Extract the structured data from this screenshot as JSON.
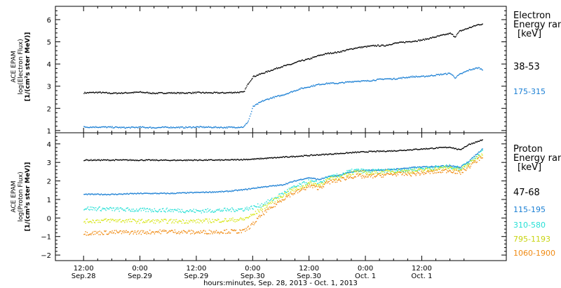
{
  "chart_data": [
    {
      "type": "scatter",
      "panel": "electron",
      "ylabel_lines": [
        "ACE EPAM",
        "log(Electron Flux)",
        "[1/(cm²s ster MeV)]"
      ],
      "legend_title": [
        "Electron",
        "Energy ran",
        "[keV]"
      ],
      "ylim": [
        0.9,
        6.6
      ],
      "yticks": [
        1,
        2,
        3,
        4,
        5,
        6
      ],
      "series": [
        {
          "name": "38-53",
          "color": "#000000",
          "points": [
            [
              0,
              2.72
            ],
            [
              3,
              2.74
            ],
            [
              6,
              2.7
            ],
            [
              9,
              2.72
            ],
            [
              12,
              2.75
            ],
            [
              15,
              2.7
            ],
            [
              18,
              2.72
            ],
            [
              21,
              2.71
            ],
            [
              24,
              2.73
            ],
            [
              27,
              2.72
            ],
            [
              30,
              2.72
            ],
            [
              32,
              2.74
            ],
            [
              34,
              2.75
            ],
            [
              35,
              3.15
            ],
            [
              36,
              3.45
            ],
            [
              38,
              3.6
            ],
            [
              40,
              3.75
            ],
            [
              42,
              3.9
            ],
            [
              44,
              4.0
            ],
            [
              46,
              4.15
            ],
            [
              48,
              4.25
            ],
            [
              50,
              4.4
            ],
            [
              52,
              4.5
            ],
            [
              54,
              4.55
            ],
            [
              56,
              4.65
            ],
            [
              58,
              4.75
            ],
            [
              60,
              4.8
            ],
            [
              62,
              4.85
            ],
            [
              64,
              4.85
            ],
            [
              66,
              4.95
            ],
            [
              68,
              5.0
            ],
            [
              70,
              5.05
            ],
            [
              72,
              5.1
            ],
            [
              74,
              5.2
            ],
            [
              76,
              5.3
            ],
            [
              78,
              5.4
            ],
            [
              79,
              5.25
            ],
            [
              80,
              5.5
            ],
            [
              82,
              5.65
            ],
            [
              84,
              5.8
            ],
            [
              85,
              5.82
            ]
          ]
        },
        {
          "name": "175-315",
          "color": "#1a7fd4",
          "points": [
            [
              0,
              1.18
            ],
            [
              3,
              1.18
            ],
            [
              6,
              1.17
            ],
            [
              9,
              1.15
            ],
            [
              12,
              1.17
            ],
            [
              15,
              1.15
            ],
            [
              18,
              1.17
            ],
            [
              21,
              1.16
            ],
            [
              24,
              1.18
            ],
            [
              27,
              1.17
            ],
            [
              30,
              1.16
            ],
            [
              32,
              1.17
            ],
            [
              34,
              1.18
            ],
            [
              35,
              1.45
            ],
            [
              36,
              2.1
            ],
            [
              38,
              2.35
            ],
            [
              40,
              2.5
            ],
            [
              42,
              2.6
            ],
            [
              44,
              2.75
            ],
            [
              46,
              2.9
            ],
            [
              48,
              3.0
            ],
            [
              50,
              3.1
            ],
            [
              52,
              3.15
            ],
            [
              54,
              3.15
            ],
            [
              56,
              3.2
            ],
            [
              58,
              3.25
            ],
            [
              60,
              3.25
            ],
            [
              62,
              3.3
            ],
            [
              64,
              3.35
            ],
            [
              66,
              3.35
            ],
            [
              68,
              3.4
            ],
            [
              70,
              3.45
            ],
            [
              72,
              3.45
            ],
            [
              74,
              3.5
            ],
            [
              76,
              3.55
            ],
            [
              78,
              3.6
            ],
            [
              79,
              3.4
            ],
            [
              80,
              3.55
            ],
            [
              82,
              3.75
            ],
            [
              84,
              3.85
            ],
            [
              85,
              3.75
            ]
          ]
        }
      ]
    },
    {
      "type": "scatter",
      "panel": "proton",
      "ylabel_lines": [
        "ACE EPAM",
        "log(Proton Flux)",
        "[1/(cm²s ster MeV)]"
      ],
      "legend_title": [
        "Proton",
        "Energy ran",
        "[keV]"
      ],
      "ylim": [
        -2.3,
        4.6
      ],
      "yticks": [
        -2,
        -1,
        0,
        1,
        2,
        3,
        4
      ],
      "series": [
        {
          "name": "47-68",
          "color": "#000000",
          "points": [
            [
              0,
              3.15
            ],
            [
              6,
              3.15
            ],
            [
              12,
              3.15
            ],
            [
              18,
              3.14
            ],
            [
              24,
              3.15
            ],
            [
              30,
              3.15
            ],
            [
              36,
              3.2
            ],
            [
              42,
              3.3
            ],
            [
              48,
              3.4
            ],
            [
              54,
              3.5
            ],
            [
              60,
              3.6
            ],
            [
              66,
              3.65
            ],
            [
              72,
              3.75
            ],
            [
              78,
              3.85
            ],
            [
              80,
              3.7
            ],
            [
              82,
              4.0
            ],
            [
              85,
              4.25
            ]
          ]
        },
        {
          "name": "115-195",
          "color": "#1a7fd4",
          "points": [
            [
              0,
              1.3
            ],
            [
              6,
              1.3
            ],
            [
              12,
              1.35
            ],
            [
              18,
              1.35
            ],
            [
              24,
              1.4
            ],
            [
              30,
              1.45
            ],
            [
              34,
              1.55
            ],
            [
              38,
              1.7
            ],
            [
              42,
              1.8
            ],
            [
              44,
              1.95
            ],
            [
              46,
              2.1
            ],
            [
              48,
              2.2
            ],
            [
              50,
              2.1
            ],
            [
              52,
              2.25
            ],
            [
              54,
              2.3
            ],
            [
              56,
              2.45
            ],
            [
              58,
              2.55
            ],
            [
              60,
              2.6
            ],
            [
              62,
              2.6
            ],
            [
              66,
              2.65
            ],
            [
              70,
              2.75
            ],
            [
              74,
              2.8
            ],
            [
              78,
              2.85
            ],
            [
              80,
              2.75
            ],
            [
              82,
              3.1
            ],
            [
              85,
              3.8
            ]
          ]
        },
        {
          "name": "310-580",
          "color": "#27e0d6",
          "points": [
            [
              0,
              0.55
            ],
            [
              6,
              0.5
            ],
            [
              12,
              0.45
            ],
            [
              18,
              0.45
            ],
            [
              24,
              0.4
            ],
            [
              30,
              0.45
            ],
            [
              34,
              0.5
            ],
            [
              36,
              0.6
            ],
            [
              38,
              0.75
            ],
            [
              40,
              1.0
            ],
            [
              42,
              1.3
            ],
            [
              44,
              1.6
            ],
            [
              46,
              1.8
            ],
            [
              48,
              2.0
            ],
            [
              50,
              1.9
            ],
            [
              52,
              2.2
            ],
            [
              54,
              2.3
            ],
            [
              56,
              2.5
            ],
            [
              58,
              2.6
            ],
            [
              60,
              2.55
            ],
            [
              62,
              2.55
            ],
            [
              66,
              2.6
            ],
            [
              70,
              2.65
            ],
            [
              74,
              2.75
            ],
            [
              78,
              2.8
            ],
            [
              80,
              2.7
            ],
            [
              82,
              3.05
            ],
            [
              85,
              3.7
            ]
          ]
        },
        {
          "name": "795-1193",
          "color": "#d8e61a",
          "points": [
            [
              0,
              -0.15
            ],
            [
              6,
              -0.1
            ],
            [
              12,
              -0.15
            ],
            [
              18,
              -0.15
            ],
            [
              24,
              -0.15
            ],
            [
              30,
              -0.1
            ],
            [
              34,
              -0.05
            ],
            [
              36,
              0.2
            ],
            [
              38,
              0.55
            ],
            [
              40,
              0.9
            ],
            [
              42,
              1.2
            ],
            [
              44,
              1.5
            ],
            [
              46,
              1.65
            ],
            [
              48,
              1.9
            ],
            [
              50,
              1.8
            ],
            [
              52,
              2.1
            ],
            [
              54,
              2.2
            ],
            [
              56,
              2.4
            ],
            [
              58,
              2.5
            ],
            [
              60,
              2.45
            ],
            [
              62,
              2.45
            ],
            [
              66,
              2.55
            ],
            [
              70,
              2.55
            ],
            [
              74,
              2.65
            ],
            [
              78,
              2.75
            ],
            [
              80,
              2.6
            ],
            [
              82,
              2.95
            ],
            [
              85,
              3.55
            ]
          ]
        },
        {
          "name": "1060-1900",
          "color": "#f08a12",
          "points": [
            [
              0,
              -0.8
            ],
            [
              6,
              -0.75
            ],
            [
              12,
              -0.75
            ],
            [
              18,
              -0.7
            ],
            [
              24,
              -0.75
            ],
            [
              30,
              -0.7
            ],
            [
              34,
              -0.7
            ],
            [
              36,
              -0.3
            ],
            [
              38,
              0.25
            ],
            [
              40,
              0.6
            ],
            [
              42,
              1.0
            ],
            [
              44,
              1.3
            ],
            [
              46,
              1.5
            ],
            [
              48,
              1.75
            ],
            [
              50,
              1.65
            ],
            [
              52,
              1.95
            ],
            [
              54,
              2.05
            ],
            [
              56,
              2.2
            ],
            [
              58,
              2.3
            ],
            [
              60,
              2.25
            ],
            [
              62,
              2.3
            ],
            [
              66,
              2.4
            ],
            [
              70,
              2.4
            ],
            [
              74,
              2.5
            ],
            [
              78,
              2.6
            ],
            [
              80,
              2.45
            ],
            [
              82,
              2.8
            ],
            [
              85,
              3.4
            ]
          ]
        }
      ]
    }
  ],
  "x_axis": {
    "title": "hours:minutes, Sep. 28, 2013 - Oct. 1, 2013",
    "range_hours": [
      -6,
      90
    ],
    "ticks": [
      {
        "h": 0,
        "time": "12:00",
        "date": "Sep.28"
      },
      {
        "h": 12,
        "time": "0:00",
        "date": "Sep.29"
      },
      {
        "h": 24,
        "time": "12:00",
        "date": "Sep.29"
      },
      {
        "h": 36,
        "time": "0:00",
        "date": "Sep.30"
      },
      {
        "h": 48,
        "time": "12:00",
        "date": "Sep.30"
      },
      {
        "h": 60,
        "time": "0:00",
        "date": "Oct. 1"
      },
      {
        "h": 72,
        "time": "12:00",
        "date": "Oct. 1"
      }
    ]
  }
}
